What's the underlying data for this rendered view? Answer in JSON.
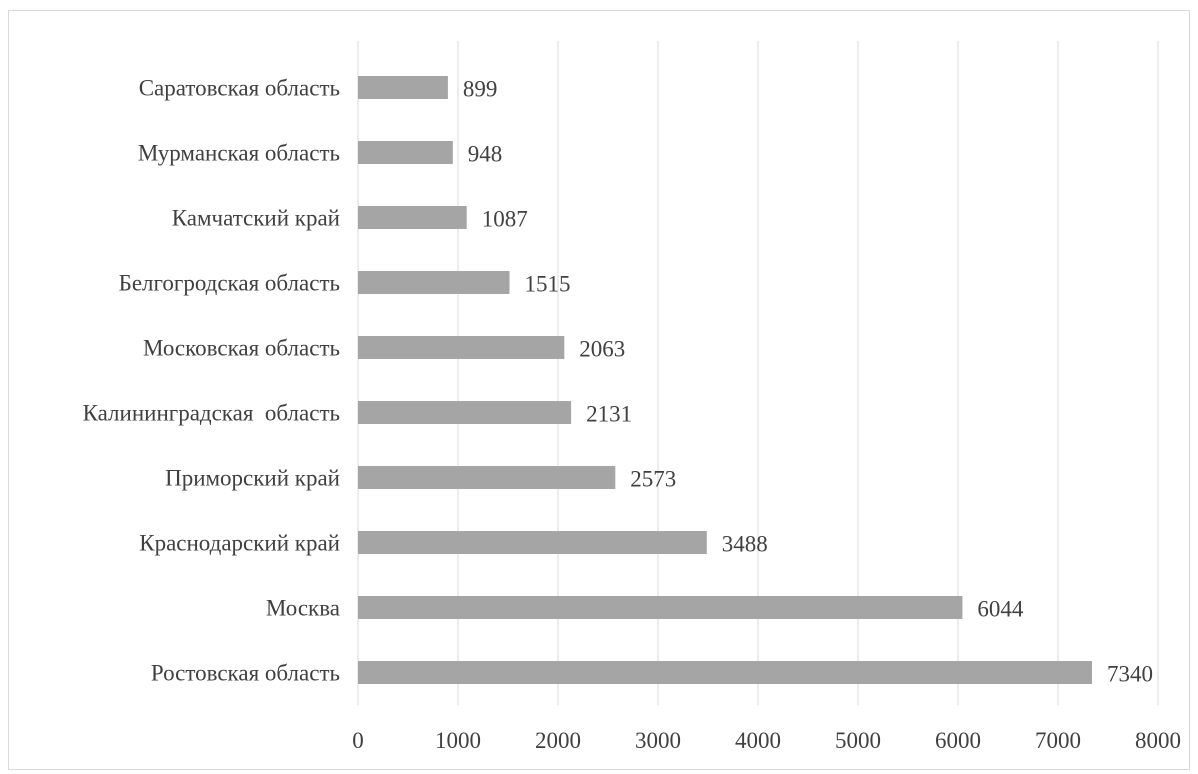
{
  "chart_data": {
    "type": "bar",
    "orientation": "horizontal",
    "categories": [
      "Саратовская область",
      "Мурманская область",
      "Камчатский край",
      "Белгогродская область",
      "Московская область",
      "Калининградская  область",
      "Приморский край",
      "Краснодарский край",
      "Москва",
      "Ростовская область"
    ],
    "values": [
      899,
      948,
      1087,
      1515,
      2063,
      2131,
      2573,
      3488,
      6044,
      7340
    ],
    "data_labels": [
      "899",
      "948",
      "1087",
      "1515",
      "2063",
      "2131",
      "2573",
      "3488",
      "6044",
      "7340"
    ],
    "x_ticks": [
      "0",
      "1000",
      "2000",
      "3000",
      "4000",
      "5000",
      "6000",
      "7000",
      "8000"
    ],
    "xlim": [
      0,
      8000
    ],
    "title": "",
    "xlabel": "",
    "ylabel": "",
    "grid": "vertical",
    "legend": "none",
    "bar_color": "#a5a5a5",
    "grid_color": "#d9d9d9",
    "text_color": "#404040"
  }
}
